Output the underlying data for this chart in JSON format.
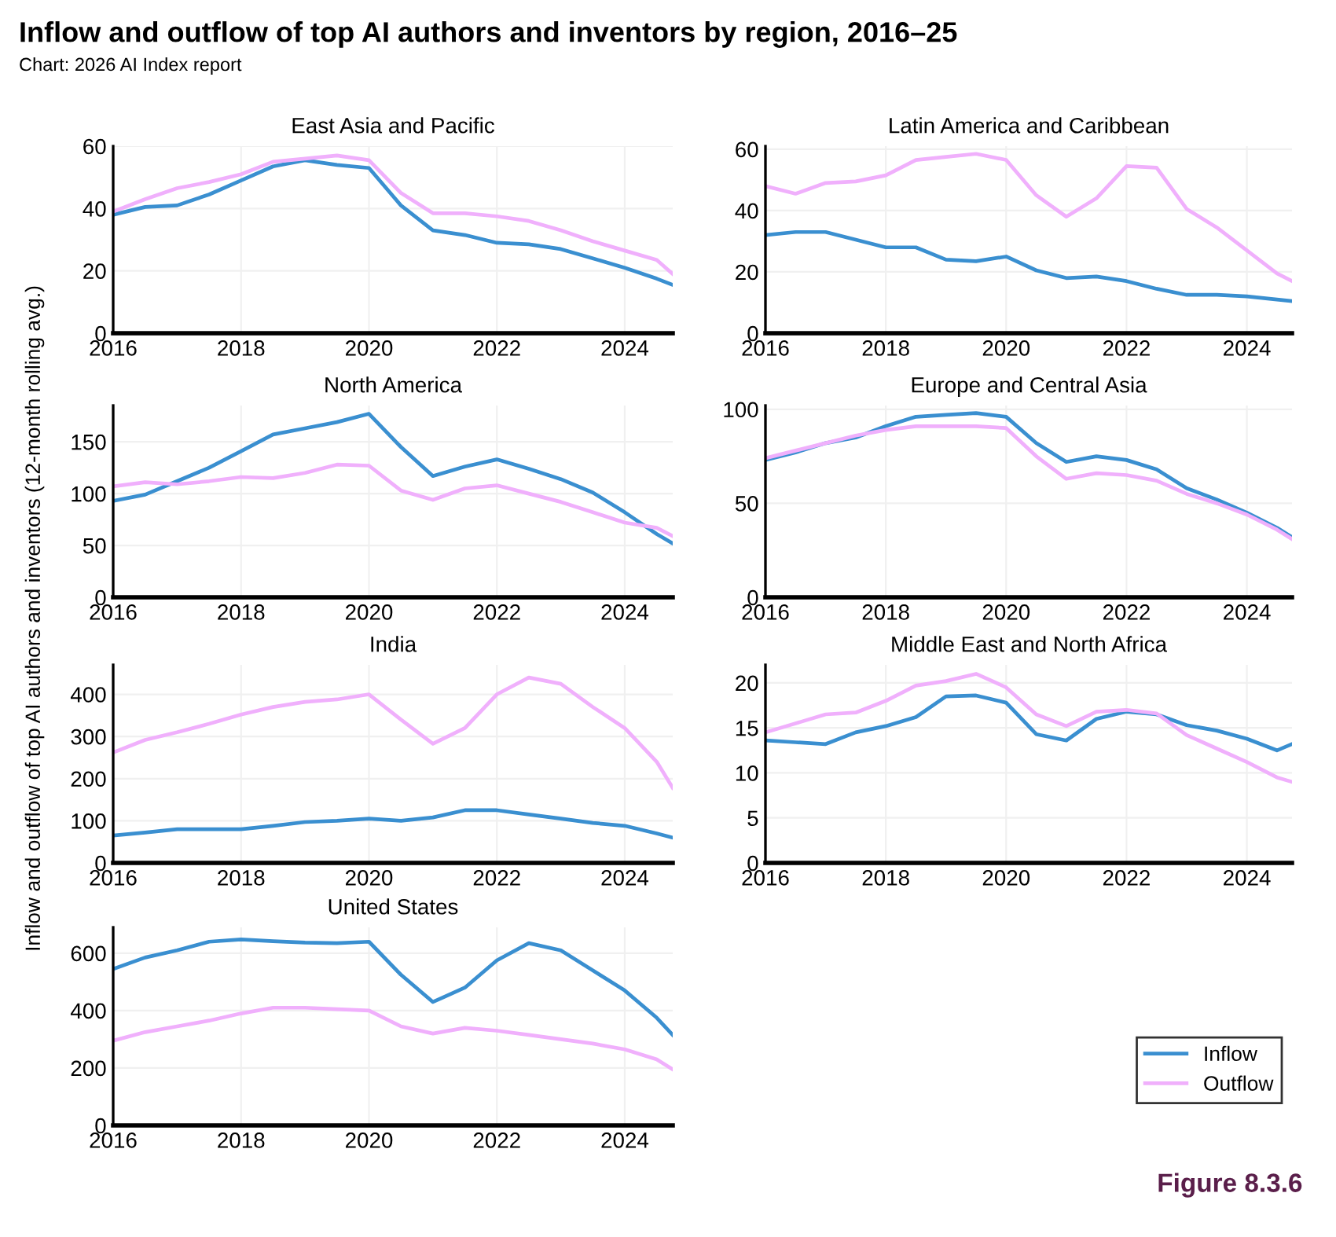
{
  "chart_data": [
    {
      "type": "line",
      "title": "Inflow and outflow of top AI authors and inventors by region, 2016–25",
      "subtitle": "Chart: 2026 AI Index report",
      "ylabel": "Inflow and outflow of top AI authors and inventors (12-month rolling avg.)",
      "annotations": [
        "East Asia and Pacific"
      ],
      "x": [
        2016,
        2016.5,
        2017,
        2017.5,
        2018,
        2018.5,
        2019,
        2019.5,
        2020,
        2020.5,
        2021,
        2021.5,
        2022,
        2022.5,
        2023,
        2023.5,
        2024,
        2024.5,
        2024.75
      ],
      "xlim": [
        2016,
        2024.75
      ],
      "xticks": [
        2016,
        2018,
        2020,
        2022,
        2024
      ],
      "ylim": [
        0,
        60
      ],
      "yticks": [
        0,
        20,
        40,
        60
      ],
      "grid": true,
      "series": [
        {
          "color": "#3a8fd0",
          "values": [
            38,
            40.5,
            41,
            44.5,
            49,
            53.5,
            55.5,
            54,
            53,
            41,
            33,
            31.5,
            29,
            28.5,
            27,
            24,
            21,
            17.5,
            15.5
          ]
        },
        {
          "color": "#f0b0fc",
          "values": [
            39,
            43,
            46.5,
            48.5,
            51,
            55,
            56,
            57,
            55.5,
            45,
            38.5,
            38.5,
            37.5,
            36,
            33,
            29.5,
            26.5,
            23.5,
            19
          ]
        }
      ]
    },
    {
      "type": "line",
      "annotations": [
        "Latin America and Caribbean"
      ],
      "x": [
        2016,
        2016.5,
        2017,
        2017.5,
        2018,
        2018.5,
        2019,
        2019.5,
        2020,
        2020.5,
        2021,
        2021.5,
        2022,
        2022.5,
        2023,
        2023.5,
        2024,
        2024.5,
        2024.75
      ],
      "xlim": [
        2016,
        2024.75
      ],
      "xticks": [
        2016,
        2018,
        2020,
        2022,
        2024
      ],
      "ylim": [
        0,
        61
      ],
      "yticks": [
        0,
        20,
        40,
        60
      ],
      "grid": true,
      "series": [
        {
          "color": "#3a8fd0",
          "values": [
            32,
            33,
            33,
            30.5,
            28,
            28,
            24,
            23.5,
            25,
            20.5,
            18,
            18.5,
            17,
            14.5,
            12.5,
            12.5,
            12,
            11,
            10.5
          ]
        },
        {
          "color": "#f0b0fc",
          "values": [
            48,
            45.5,
            49,
            49.5,
            51.5,
            56.5,
            57.5,
            58.5,
            56.5,
            45,
            38,
            44,
            54.5,
            54,
            40.5,
            34.5,
            27,
            19.5,
            17
          ]
        }
      ]
    },
    {
      "type": "line",
      "annotations": [
        "North America"
      ],
      "x": [
        2016,
        2016.5,
        2017,
        2017.5,
        2018,
        2018.5,
        2019,
        2019.5,
        2020,
        2020.5,
        2021,
        2021.5,
        2022,
        2022.5,
        2023,
        2023.5,
        2024,
        2024.5,
        2024.75
      ],
      "xlim": [
        2016,
        2024.75
      ],
      "xticks": [
        2016,
        2018,
        2020,
        2022,
        2024
      ],
      "ylim": [
        0,
        185
      ],
      "yticks": [
        0,
        50,
        100,
        150
      ],
      "grid": true,
      "series": [
        {
          "color": "#3a8fd0",
          "values": [
            93,
            99,
            112,
            125,
            141,
            157,
            163,
            169,
            177,
            145,
            117,
            126,
            133,
            124,
            114,
            101,
            82,
            61,
            52
          ]
        },
        {
          "color": "#f0b0fc",
          "values": [
            107,
            111,
            109,
            112,
            116,
            115,
            120,
            128,
            127,
            103,
            94,
            105,
            108,
            100,
            92,
            82,
            72,
            67,
            59
          ]
        }
      ]
    },
    {
      "type": "line",
      "annotations": [
        "Europe and Central Asia"
      ],
      "x": [
        2016,
        2016.5,
        2017,
        2017.5,
        2018,
        2018.5,
        2019,
        2019.5,
        2020,
        2020.5,
        2021,
        2021.5,
        2022,
        2022.5,
        2023,
        2023.5,
        2024,
        2024.5,
        2024.75
      ],
      "xlim": [
        2016,
        2024.75
      ],
      "xticks": [
        2016,
        2018,
        2020,
        2022,
        2024
      ],
      "ylim": [
        0,
        102
      ],
      "yticks": [
        0,
        50,
        100
      ],
      "grid": true,
      "series": [
        {
          "color": "#3a8fd0",
          "values": [
            73,
            77,
            82,
            85,
            91,
            96,
            97,
            98,
            96,
            82,
            72,
            75,
            73,
            68,
            58,
            52,
            45,
            37,
            32
          ]
        },
        {
          "color": "#f0b0fc",
          "values": [
            74,
            78,
            82,
            86,
            89,
            91,
            91,
            91,
            90,
            75,
            63,
            66,
            65,
            62,
            55,
            50,
            44,
            36,
            31
          ]
        }
      ]
    },
    {
      "type": "line",
      "annotations": [
        "India"
      ],
      "x": [
        2016,
        2016.5,
        2017,
        2017.5,
        2018,
        2018.5,
        2019,
        2019.5,
        2020,
        2020.5,
        2021,
        2021.5,
        2022,
        2022.5,
        2023,
        2023.5,
        2024,
        2024.5,
        2024.75
      ],
      "xlim": [
        2016,
        2024.75
      ],
      "xticks": [
        2016,
        2018,
        2020,
        2022,
        2024
      ],
      "ylim": [
        0,
        470
      ],
      "yticks": [
        0,
        100,
        200,
        300,
        400
      ],
      "grid": true,
      "series": [
        {
          "color": "#3a8fd0",
          "values": [
            65,
            72,
            80,
            80,
            80,
            88,
            97,
            100,
            105,
            100,
            108,
            125,
            125,
            115,
            105,
            95,
            88,
            70,
            60
          ]
        },
        {
          "color": "#f0b0fc",
          "values": [
            262,
            292,
            310,
            330,
            352,
            370,
            382,
            388,
            400,
            340,
            283,
            320,
            400,
            440,
            425,
            370,
            320,
            240,
            178
          ]
        }
      ]
    },
    {
      "type": "line",
      "annotations": [
        "Middle East and North Africa"
      ],
      "x": [
        2016,
        2016.5,
        2017,
        2017.5,
        2018,
        2018.5,
        2019,
        2019.5,
        2020,
        2020.5,
        2021,
        2021.5,
        2022,
        2022.5,
        2023,
        2023.5,
        2024,
        2024.5,
        2024.75
      ],
      "xlim": [
        2016,
        2024.75
      ],
      "xticks": [
        2016,
        2018,
        2020,
        2022,
        2024
      ],
      "ylim": [
        0,
        22
      ],
      "yticks": [
        0,
        5,
        10,
        15,
        20
      ],
      "grid": true,
      "series": [
        {
          "color": "#3a8fd0",
          "values": [
            13.6,
            13.4,
            13.2,
            14.5,
            15.2,
            16.2,
            18.5,
            18.6,
            17.8,
            14.3,
            13.6,
            16,
            16.8,
            16.5,
            15.3,
            14.7,
            13.8,
            12.5,
            13.2
          ]
        },
        {
          "color": "#f0b0fc",
          "values": [
            14.5,
            15.5,
            16.5,
            16.7,
            18,
            19.7,
            20.2,
            21,
            19.5,
            16.5,
            15.2,
            16.8,
            17,
            16.6,
            14.2,
            12.7,
            11.2,
            9.5,
            9
          ]
        }
      ]
    },
    {
      "type": "line",
      "annotations": [
        "United States",
        "Figure 8.3.6"
      ],
      "legend": "right",
      "x": [
        2016,
        2016.5,
        2017,
        2017.5,
        2018,
        2018.5,
        2019,
        2019.5,
        2020,
        2020.5,
        2021,
        2021.5,
        2022,
        2022.5,
        2023,
        2023.5,
        2024,
        2024.5,
        2024.75
      ],
      "xlim": [
        2016,
        2024.75
      ],
      "xticks": [
        2016,
        2018,
        2020,
        2022,
        2024
      ],
      "ylim": [
        0,
        690
      ],
      "yticks": [
        0,
        200,
        400,
        600
      ],
      "grid": true,
      "series": [
        {
          "name": "Inflow",
          "color": "#3a8fd0",
          "values": [
            545,
            585,
            610,
            640,
            648,
            642,
            637,
            635,
            640,
            525,
            430,
            480,
            575,
            635,
            610,
            540,
            470,
            375,
            315
          ]
        },
        {
          "name": "Outflow",
          "color": "#f0b0fc",
          "values": [
            295,
            325,
            345,
            365,
            390,
            410,
            410,
            405,
            400,
            345,
            320,
            340,
            330,
            315,
            300,
            285,
            265,
            230,
            195
          ]
        }
      ]
    }
  ]
}
